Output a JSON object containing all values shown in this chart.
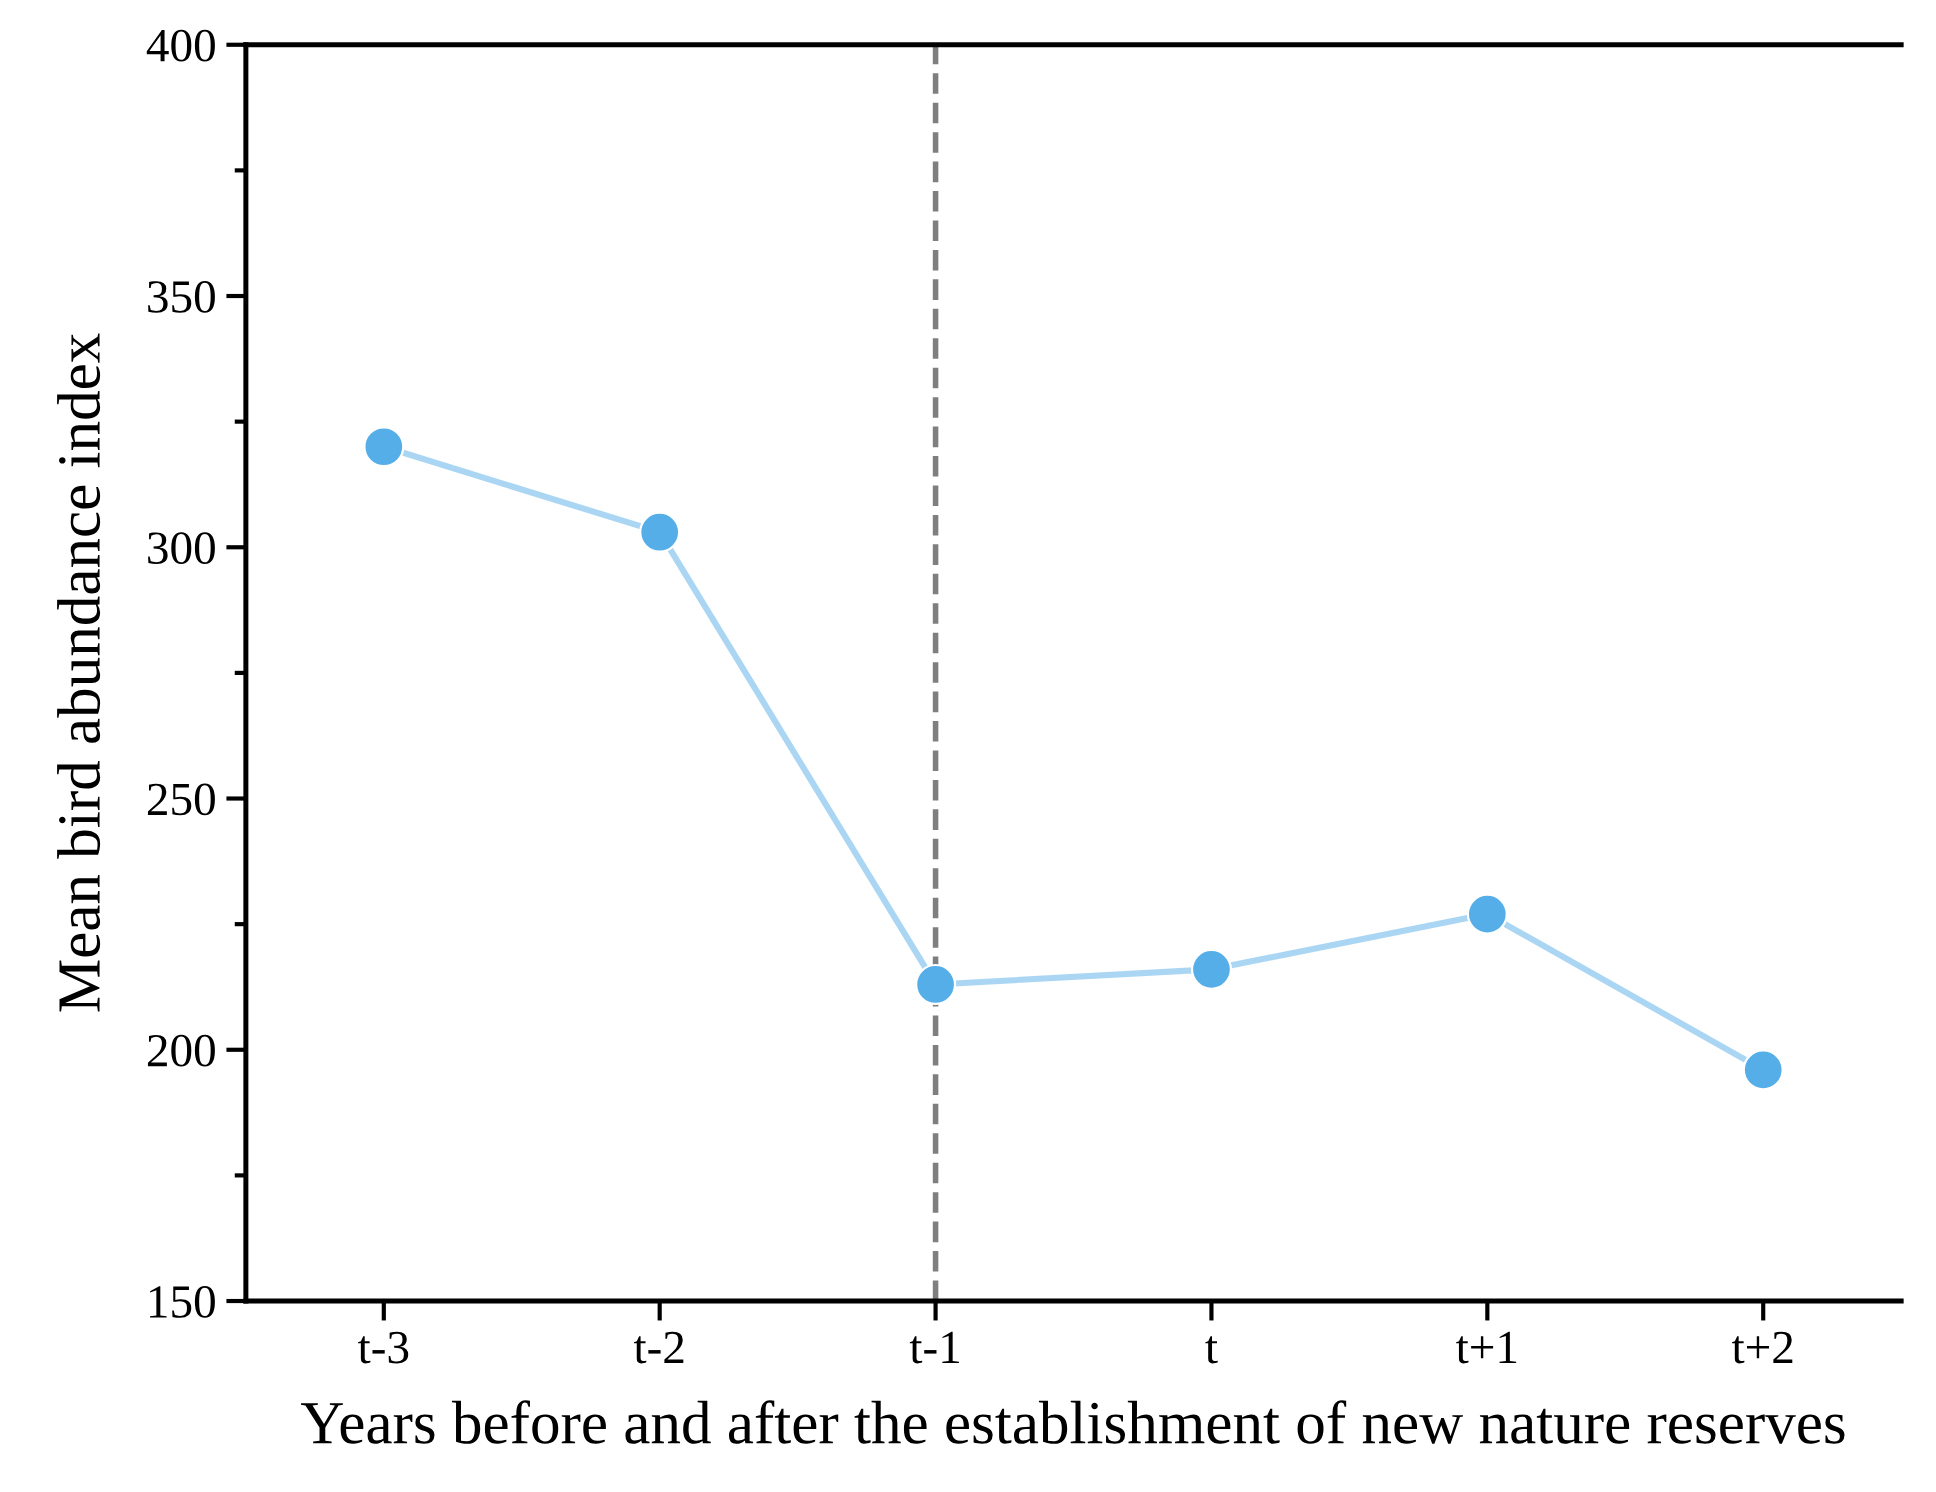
{
  "chart_data": {
    "type": "line",
    "xlabel": "Years before and after the establishment of new nature reserves",
    "ylabel": "Mean bird abundance index",
    "categories": [
      "t-3",
      "t-2",
      "t-1",
      "t",
      "t+1",
      "t+2"
    ],
    "series": [
      {
        "color": "#56aee8",
        "values": [
          320,
          303,
          213,
          216,
          227,
          196
        ]
      }
    ],
    "ylim": [
      150,
      400
    ],
    "yticks": [
      150,
      200,
      250,
      300,
      350,
      400
    ],
    "ref_lines": [
      {
        "axis": "x",
        "value": "t-1",
        "color": "#7f7f7f",
        "line_style": "dashed"
      }
    ],
    "marker": "circle",
    "line_style": "solid",
    "grid": false,
    "legend": false
  }
}
